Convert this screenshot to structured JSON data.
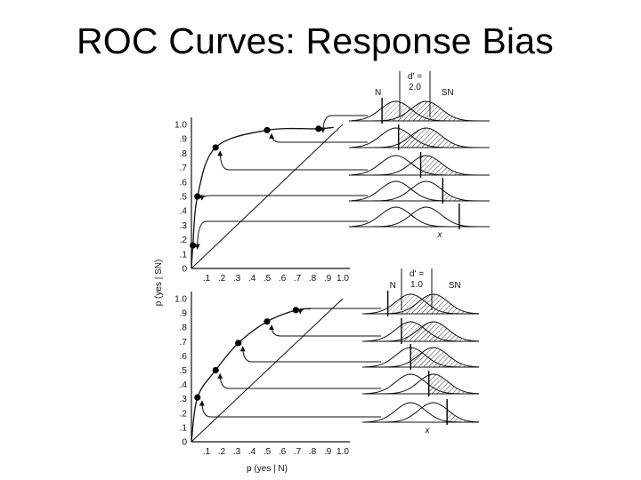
{
  "title": "ROC Curves: Response Bias",
  "figure": {
    "y_axis_label": "p (yes | SN)",
    "x_axis_label": "p (yes | N)",
    "y_tick_labels": [
      "1.0",
      ".9",
      ".8",
      ".7",
      ".6",
      ".5",
      ".4",
      ".3",
      ".2",
      ".1",
      "0"
    ],
    "x_tick_labels": [
      ".1",
      ".2",
      ".3",
      ".4",
      ".5",
      ".6",
      ".7",
      ".8",
      ".9",
      "1.0"
    ],
    "noise_label": "N",
    "signal_label": "SN",
    "criterion_label": "x",
    "panels": [
      {
        "d_prime_label": "d' =",
        "d_prime_value": "2.0",
        "roc_points": [
          {
            "fa": 0.01,
            "hit": 0.16
          },
          {
            "fa": 0.04,
            "hit": 0.5
          },
          {
            "fa": 0.16,
            "hit": 0.84
          },
          {
            "fa": 0.5,
            "hit": 0.96
          },
          {
            "fa": 0.84,
            "hit": 0.97
          }
        ]
      },
      {
        "d_prime_label": "d' =",
        "d_prime_value": "1.0",
        "roc_points": [
          {
            "fa": 0.04,
            "hit": 0.31
          },
          {
            "fa": 0.16,
            "hit": 0.5
          },
          {
            "fa": 0.31,
            "hit": 0.69
          },
          {
            "fa": 0.5,
            "hit": 0.84
          },
          {
            "fa": 0.69,
            "hit": 0.92
          }
        ]
      }
    ]
  }
}
